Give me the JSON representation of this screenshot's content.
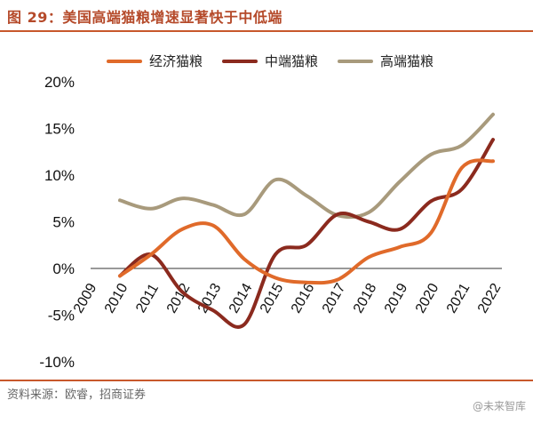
{
  "figure": {
    "title": "图 29：美国高端猫粮增速显著快于中低端",
    "source": "资料来源：欧睿，招商证券",
    "watermark": "@未来智库",
    "accent_color": "#c8582c"
  },
  "chart_data": {
    "type": "line",
    "x": [
      "2009",
      "2010",
      "2011",
      "2012",
      "2013",
      "2014",
      "2015",
      "2016",
      "2017",
      "2018",
      "2019",
      "2020",
      "2021",
      "2022"
    ],
    "series": [
      {
        "name": "经济猫粮",
        "color": "#e06a2a",
        "values": [
          null,
          -0.8,
          1.5,
          4.2,
          4.6,
          1.0,
          -1.0,
          -1.5,
          -1.2,
          1.2,
          2.3,
          3.8,
          10.8,
          11.5
        ]
      },
      {
        "name": "中端猫粮",
        "color": "#8b2a1e",
        "values": [
          null,
          -0.8,
          1.5,
          -2.5,
          -4.5,
          -6.0,
          1.5,
          2.5,
          5.8,
          5.0,
          4.2,
          7.2,
          8.5,
          13.8
        ]
      },
      {
        "name": "高端猫粮",
        "color": "#a89a7c",
        "values": [
          null,
          7.3,
          6.4,
          7.5,
          6.8,
          5.8,
          9.5,
          7.8,
          5.7,
          6.0,
          9.3,
          12.2,
          13.2,
          16.5
        ]
      }
    ],
    "y_ticks": [
      "20%",
      "15%",
      "10%",
      "5%",
      "0%",
      "-5%",
      "-10%"
    ],
    "ylim": [
      -10,
      20
    ],
    "grid": false,
    "legend_position": "top"
  }
}
